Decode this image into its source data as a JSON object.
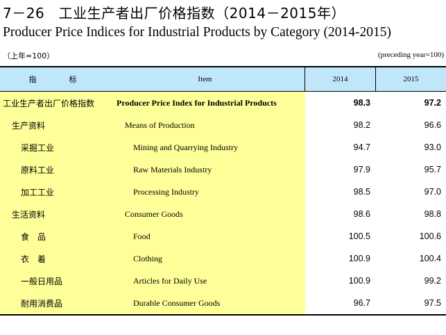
{
  "title": {
    "zh": "7－26　工业生产者出厂价格指数（2014－2015年）",
    "en": "Producer Price Indices for Industrial Products by Category (2014-2015)"
  },
  "unit": {
    "zh": "（上年=100）",
    "en": "(preceding year=100)"
  },
  "header": {
    "indicator": "指　标",
    "item": "Item",
    "year1": "2014",
    "year2": "2015"
  },
  "rows": [
    {
      "zh": "工业生产者出厂价格指数",
      "en": "Producer Price Index for Industrial Products",
      "v2014": "98.3",
      "v2015": "97.2"
    },
    {
      "zh": "生产资料",
      "en": "Means of Production",
      "v2014": "98.2",
      "v2015": "96.6"
    },
    {
      "zh": "采掘工业",
      "en": "Mining and Quarrying Industry",
      "v2014": "94.7",
      "v2015": "93.0"
    },
    {
      "zh": "原料工业",
      "en": "Raw Materials Industry",
      "v2014": "97.9",
      "v2015": "95.7"
    },
    {
      "zh": "加工工业",
      "en": "Processing Industry",
      "v2014": "98.5",
      "v2015": "97.0"
    },
    {
      "zh": "生活资料",
      "en": "Consumer Goods",
      "v2014": "98.6",
      "v2015": "98.8"
    },
    {
      "zh": "食　品",
      "en": "Food",
      "v2014": "100.5",
      "v2015": "100.6"
    },
    {
      "zh": "衣　着",
      "en": "Clothing",
      "v2014": "100.9",
      "v2015": "100.4"
    },
    {
      "zh": "一般日用品",
      "en": "Articles for Daily Use",
      "v2014": "100.9",
      "v2015": "99.2"
    },
    {
      "zh": "耐用消费品",
      "en": "Durable Consumer Goods",
      "v2014": "96.7",
      "v2015": "97.5"
    }
  ],
  "colors": {
    "header_bg": "#bfe6f9",
    "label_bg": "#ffff99"
  }
}
